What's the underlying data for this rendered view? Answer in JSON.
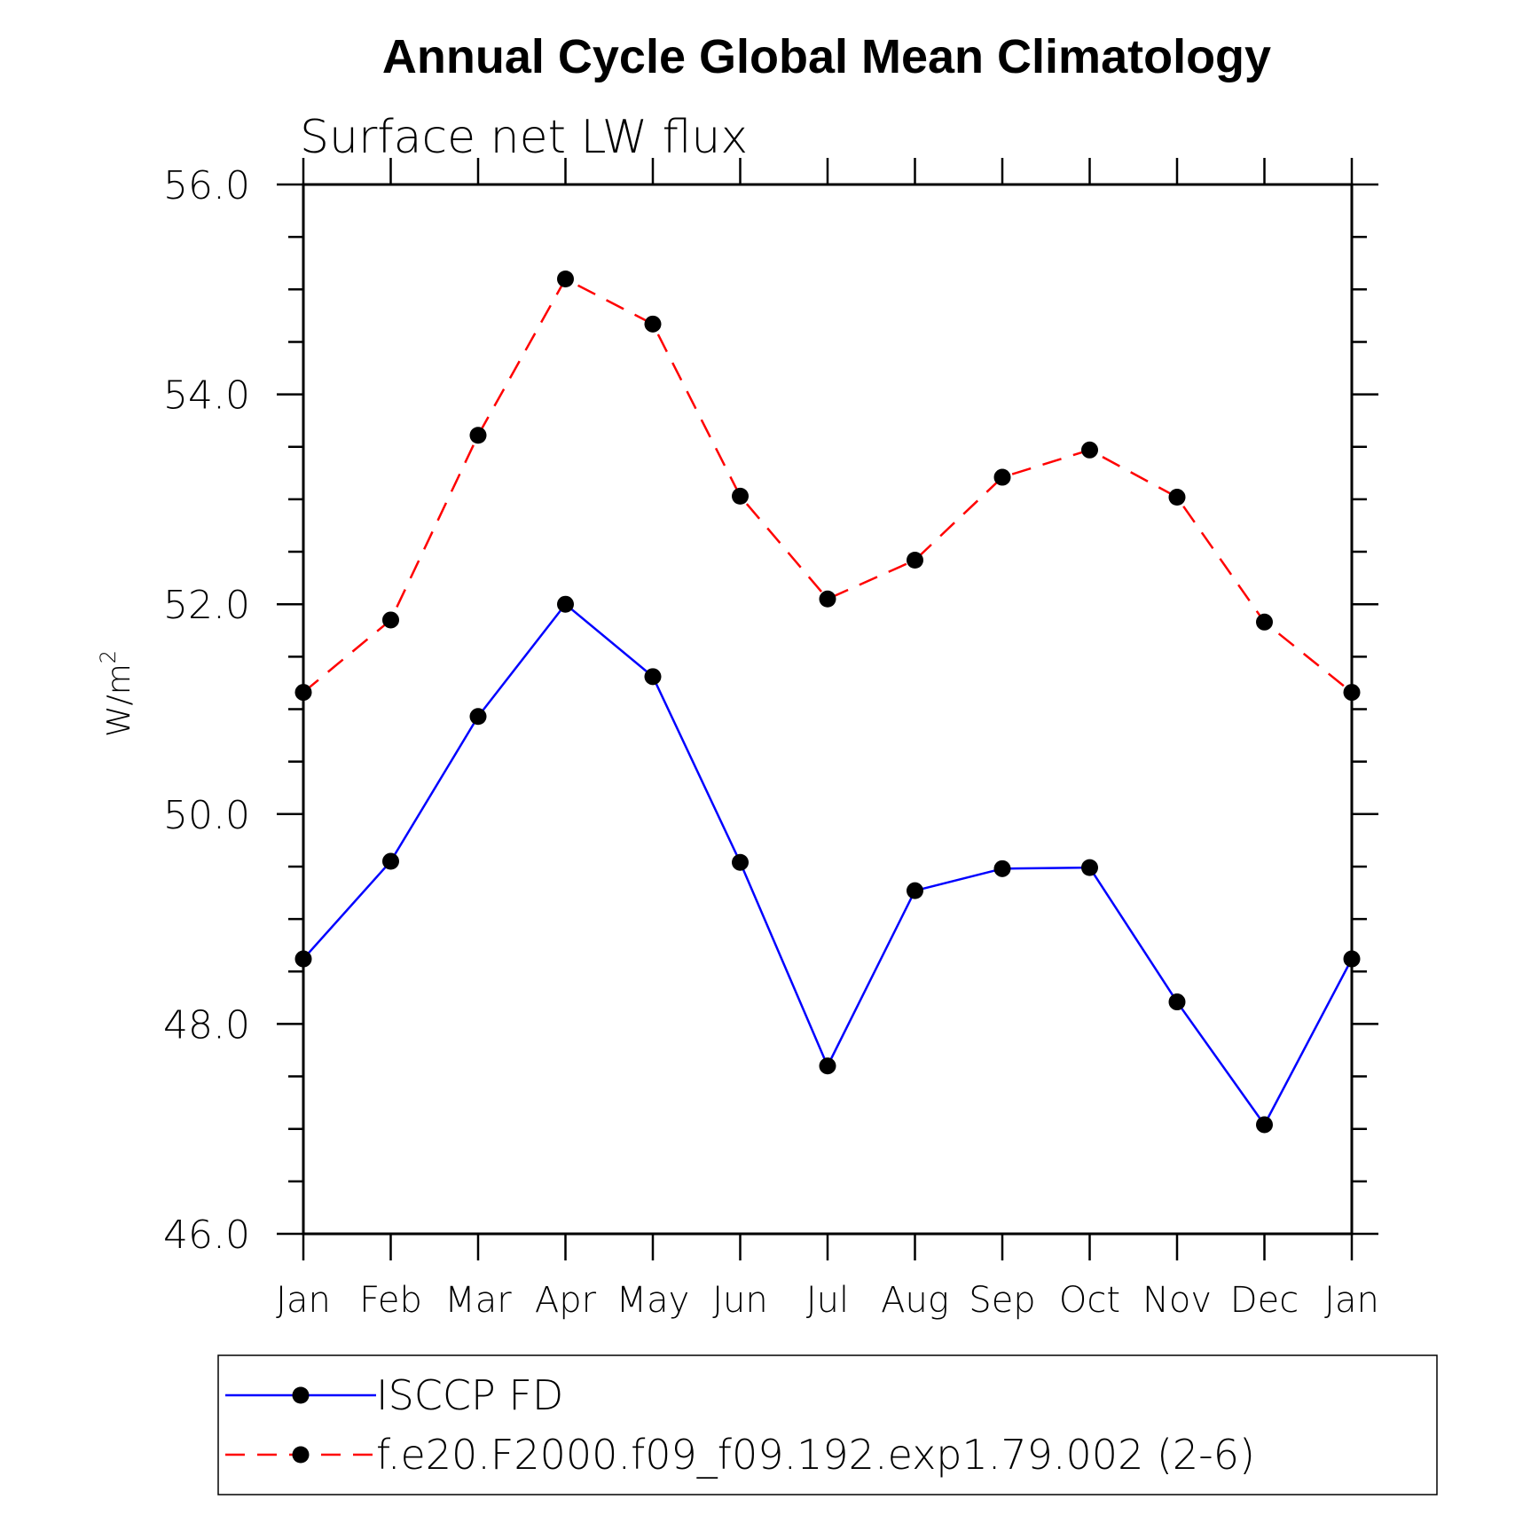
{
  "chart_data": {
    "type": "line",
    "title": "Annual Cycle Global Mean Climatology",
    "subtitle": "Surface net LW flux",
    "ylabel": "W/m",
    "ylabel_superscript": "2",
    "ylim": [
      46,
      56
    ],
    "yticks": [
      46,
      48,
      50,
      52,
      54,
      56
    ],
    "ytick_labels": [
      "46.0",
      "48.0",
      "50.0",
      "52.0",
      "54.0",
      "56.0"
    ],
    "categories": [
      "Jan",
      "Feb",
      "Mar",
      "Apr",
      "May",
      "Jun",
      "Jul",
      "Aug",
      "Sep",
      "Oct",
      "Nov",
      "Dec",
      "Jan"
    ],
    "series": [
      {
        "name": "ISCCP FD",
        "color": "#0000ff",
        "dash": "solid",
        "values": [
          48.62,
          49.55,
          50.93,
          52.0,
          51.31,
          49.54,
          47.6,
          49.27,
          49.48,
          49.49,
          48.21,
          47.04,
          48.62
        ]
      },
      {
        "name": "f.e20.F2000.f09_f09.192.exp1.79.002 (2-6)",
        "color": "#ff0000",
        "dash": "dashed",
        "values": [
          51.16,
          51.85,
          53.61,
          55.1,
          54.67,
          53.03,
          52.05,
          52.42,
          53.21,
          53.47,
          53.02,
          51.83,
          51.16
        ]
      }
    ],
    "legend_position": "bottom"
  }
}
